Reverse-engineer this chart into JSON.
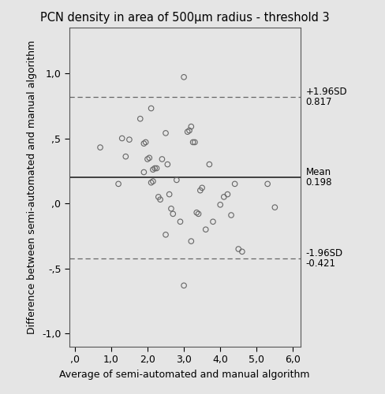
{
  "title": "PCN density in area of 500μm radius - threshold 3",
  "xlabel": "Average of semi-automated and manual algorithm",
  "ylabel": "Difference between semi-automated and manual algorithm",
  "mean": 0.198,
  "upper_loa": 0.817,
  "lower_loa": -0.421,
  "xlim": [
    -0.15,
    6.2
  ],
  "ylim": [
    -1.1,
    1.35
  ],
  "xticks": [
    0.0,
    1.0,
    2.0,
    3.0,
    4.0,
    5.0,
    6.0
  ],
  "yticks": [
    -1.0,
    -0.5,
    0.0,
    0.5,
    1.0
  ],
  "scatter_x": [
    0.7,
    1.3,
    1.4,
    1.5,
    1.8,
    1.9,
    1.95,
    2.0,
    2.05,
    2.1,
    2.15,
    2.2,
    2.25,
    2.3,
    2.35,
    2.4,
    2.5,
    2.55,
    2.6,
    2.65,
    2.7,
    2.8,
    2.9,
    3.0,
    3.1,
    3.15,
    3.2,
    3.25,
    3.3,
    3.35,
    3.4,
    3.45,
    3.5,
    3.6,
    3.7,
    3.8,
    4.0,
    4.1,
    4.2,
    4.3,
    4.4,
    4.5,
    4.6,
    5.3,
    5.5,
    3.2,
    2.5,
    2.1,
    2.15,
    1.2,
    1.9,
    3.0
  ],
  "scatter_y": [
    0.43,
    0.5,
    0.36,
    0.49,
    0.65,
    0.46,
    0.47,
    0.34,
    0.35,
    0.16,
    0.17,
    0.27,
    0.27,
    0.05,
    0.03,
    0.34,
    0.54,
    0.3,
    0.07,
    -0.04,
    -0.08,
    0.18,
    -0.14,
    0.97,
    0.55,
    0.56,
    0.59,
    0.47,
    0.47,
    -0.07,
    -0.08,
    0.1,
    0.12,
    -0.2,
    0.3,
    -0.14,
    -0.01,
    0.05,
    0.07,
    -0.09,
    0.15,
    -0.35,
    -0.37,
    0.15,
    -0.03,
    -0.29,
    -0.24,
    0.73,
    0.26,
    0.15,
    0.24,
    -0.63
  ],
  "bg_color": "#e5e5e5",
  "scatter_facecolor": "none",
  "scatter_edgecolor": "#666666",
  "mean_line_color": "#333333",
  "loa_line_color": "#666666",
  "annotation_color": "#000000",
  "title_fontsize": 10.5,
  "label_fontsize": 9,
  "tick_fontsize": 9,
  "annotation_fontsize": 8.5,
  "annot_upper_sd": "+1.96SD",
  "annot_upper_val": "0.817",
  "annot_mean_label": "Mean",
  "annot_mean_val": "0.198",
  "annot_lower_sd": "-1.96SD",
  "annot_lower_val": "-0.421"
}
